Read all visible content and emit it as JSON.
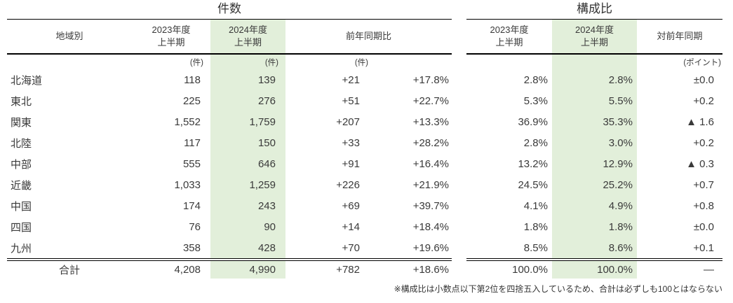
{
  "left_table": {
    "title": "件数",
    "columns": {
      "region": "地域別",
      "fy2023": "2023年度\n上半期",
      "fy2024": "2024年度\n上半期",
      "yoy": "前年同期比"
    },
    "unit_count": "(件)",
    "total_label": "合計"
  },
  "right_table": {
    "title": "構成比",
    "columns": {
      "fy2023": "2023年度\n上半期",
      "fy2024": "2024年度\n上半期",
      "vs_prev": "対前年同期"
    },
    "unit_point": "(ポイント)"
  },
  "footnote": "※構成比は小数点以下第2位を四捨五入しているため、合計は必ずしも100とはならない",
  "colors": {
    "highlight": "#e2efda",
    "border": "#000000",
    "text": "#3a3a3a"
  },
  "chart_data": {
    "type": "table",
    "sections": [
      "件数",
      "構成比"
    ],
    "column_labels": [
      "地域別",
      "2023年度上半期 (件)",
      "2024年度上半期 (件)",
      "前年同期比 (件)",
      "前年同期比 (%)",
      "構成比 2023年度上半期",
      "構成比 2024年度上半期",
      "対前年同期 (ポイント)"
    ],
    "rows": [
      {
        "region": "北海道",
        "count_2023": "118",
        "count_2024": "139",
        "diff": "+21",
        "pct_change": "+17.8%",
        "share_2023": "2.8%",
        "share_2024": "2.8%",
        "share_diff": "±0.0"
      },
      {
        "region": "東北",
        "count_2023": "225",
        "count_2024": "276",
        "diff": "+51",
        "pct_change": "+22.7%",
        "share_2023": "5.3%",
        "share_2024": "5.5%",
        "share_diff": "+0.2"
      },
      {
        "region": "関東",
        "count_2023": "1,552",
        "count_2024": "1,759",
        "diff": "+207",
        "pct_change": "+13.3%",
        "share_2023": "36.9%",
        "share_2024": "35.3%",
        "share_diff": "▲ 1.6"
      },
      {
        "region": "北陸",
        "count_2023": "117",
        "count_2024": "150",
        "diff": "+33",
        "pct_change": "+28.2%",
        "share_2023": "2.8%",
        "share_2024": "3.0%",
        "share_diff": "+0.2"
      },
      {
        "region": "中部",
        "count_2023": "555",
        "count_2024": "646",
        "diff": "+91",
        "pct_change": "+16.4%",
        "share_2023": "13.2%",
        "share_2024": "12.9%",
        "share_diff": "▲ 0.3"
      },
      {
        "region": "近畿",
        "count_2023": "1,033",
        "count_2024": "1,259",
        "diff": "+226",
        "pct_change": "+21.9%",
        "share_2023": "24.5%",
        "share_2024": "25.2%",
        "share_diff": "+0.7"
      },
      {
        "region": "中国",
        "count_2023": "174",
        "count_2024": "243",
        "diff": "+69",
        "pct_change": "+39.7%",
        "share_2023": "4.1%",
        "share_2024": "4.9%",
        "share_diff": "+0.8"
      },
      {
        "region": "四国",
        "count_2023": "76",
        "count_2024": "90",
        "diff": "+14",
        "pct_change": "+18.4%",
        "share_2023": "1.8%",
        "share_2024": "1.8%",
        "share_diff": "±0.0"
      },
      {
        "region": "九州",
        "count_2023": "358",
        "count_2024": "428",
        "diff": "+70",
        "pct_change": "+19.6%",
        "share_2023": "8.5%",
        "share_2024": "8.6%",
        "share_diff": "+0.1"
      }
    ],
    "total": {
      "label": "合計",
      "count_2023": "4,208",
      "count_2024": "4,990",
      "diff": "+782",
      "pct_change": "+18.6%",
      "share_2023": "100.0%",
      "share_2024": "100.0%",
      "share_diff": "—"
    }
  }
}
